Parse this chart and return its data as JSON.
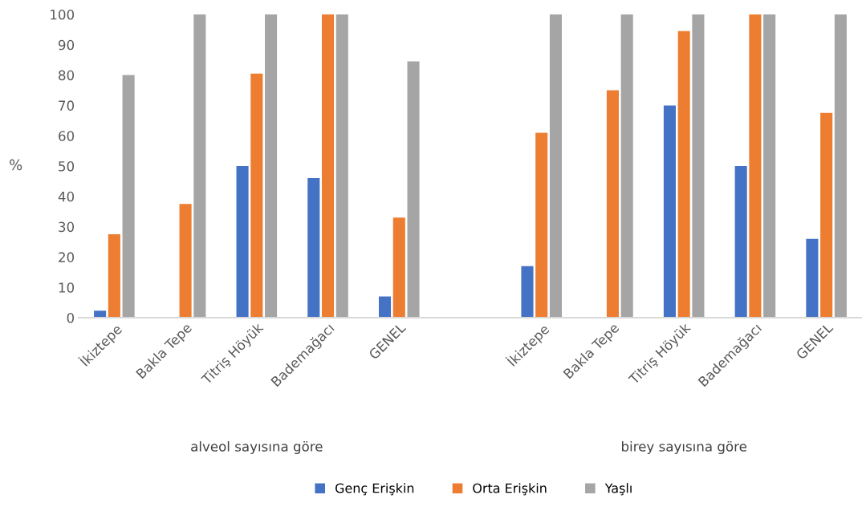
{
  "chart_data": {
    "type": "bar",
    "ylabel": "%",
    "categories": [
      "İkiztepe",
      "Bakla Tepe",
      "Titriş Höyük",
      "Bademağacı",
      "GENEL",
      null,
      "İkiztepe",
      "Bakla Tepe",
      "Titriş Höyük",
      "Bademağacı",
      "GENEL"
    ],
    "series": [
      {
        "name": "Genç Erişkin",
        "color": "#4472c4",
        "values": [
          2.3,
          0,
          50,
          46,
          7,
          null,
          17,
          0,
          70,
          50,
          26
        ]
      },
      {
        "name": "Orta Erişkin",
        "color": "#ed7d31",
        "values": [
          27.5,
          37.5,
          80.5,
          100,
          33,
          null,
          61,
          75,
          94.5,
          100,
          67.5
        ]
      },
      {
        "name": "Yaşlı",
        "color": "#a5a5a5",
        "values": [
          80,
          100,
          100,
          100,
          84.5,
          null,
          100,
          100,
          100,
          100,
          100
        ]
      }
    ],
    "annotations": [
      "alveol sayısına göre",
      "birey sayısına göre"
    ],
    "ylim": [
      0,
      100
    ],
    "yticks": [
      0,
      10,
      20,
      30,
      40,
      50,
      60,
      70,
      80,
      90,
      100
    ],
    "grid": false,
    "legend": "bottom"
  }
}
